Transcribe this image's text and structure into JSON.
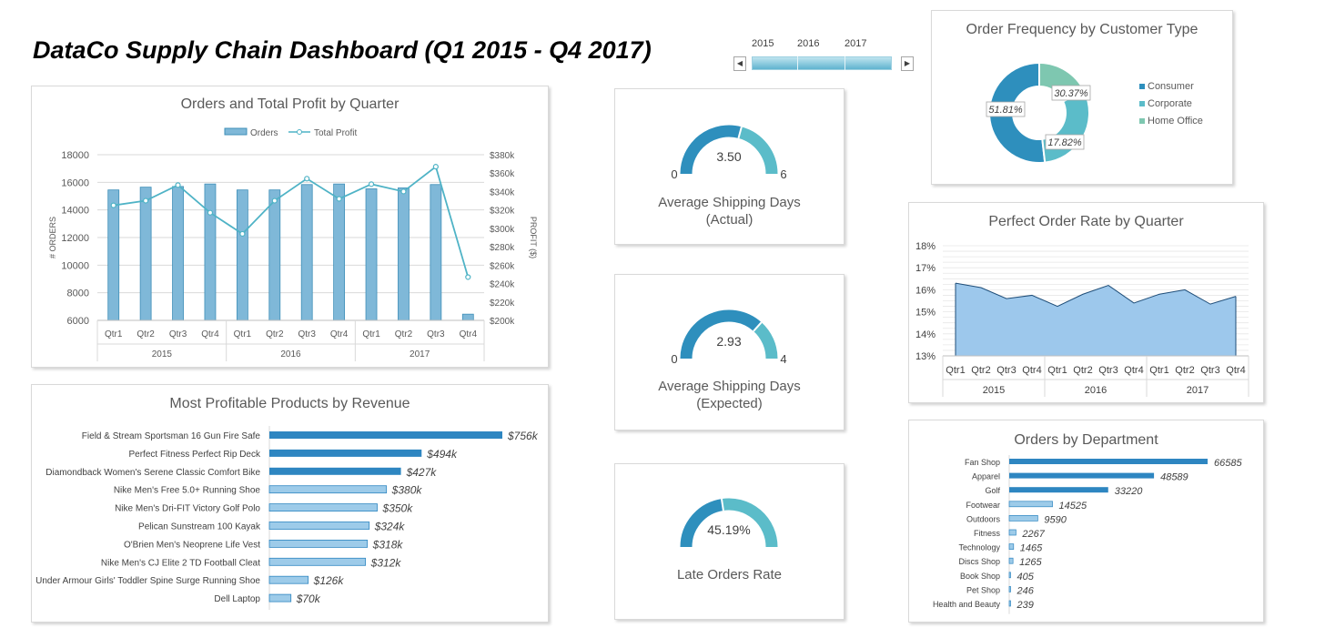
{
  "title": "DataCo Supply Chain Dashboard (Q1 2015 - Q4 2017)",
  "slicer": {
    "years": [
      "2015",
      "2016",
      "2017"
    ],
    "left_arrow": "◀",
    "right_arrow": "▶"
  },
  "colors": {
    "dark_blue": "#2e86c1",
    "teal_bar": "#4aa3c8",
    "bar_fill": "#7fb8d8",
    "light_bar": "#9dcbe9",
    "line": "#4fb3c6",
    "area": "#9dc8ec",
    "gauge_dark": "#2e8fbd",
    "gauge_light": "#5bbcc9"
  },
  "chart_data": [
    {
      "type": "bar",
      "title": "Orders and Total Profit by Quarter",
      "legend": [
        "Orders",
        "Total Profit"
      ],
      "legend_position": "top",
      "ylabel": "# ORDERS",
      "y2label": "PROFIT ($)",
      "categories": [
        "Qtr1",
        "Qtr2",
        "Qtr3",
        "Qtr4",
        "Qtr1",
        "Qtr2",
        "Qtr3",
        "Qtr4",
        "Qtr1",
        "Qtr2",
        "Qtr3",
        "Qtr4"
      ],
      "groups": [
        "2015",
        "2016",
        "2017"
      ],
      "ylim": [
        6000,
        18000
      ],
      "yticks": [
        6000,
        8000,
        10000,
        12000,
        14000,
        16000,
        18000
      ],
      "y2lim": [
        200,
        380
      ],
      "y2ticks": [
        "$200k",
        "$220k",
        "$240k",
        "$260k",
        "$280k",
        "$300k",
        "$320k",
        "$340k",
        "$360k",
        "$380k"
      ],
      "series": [
        {
          "name": "Orders",
          "type": "bar",
          "values": [
            15450,
            15650,
            15700,
            15880,
            15450,
            15450,
            15840,
            15880,
            15530,
            15600,
            15840,
            6450
          ]
        },
        {
          "name": "Total Profit",
          "type": "line",
          "values": [
            325,
            330,
            347,
            317,
            294,
            330,
            354,
            332,
            348,
            340,
            367,
            247
          ]
        }
      ],
      "grid": true
    },
    {
      "type": "bar",
      "orientation": "horizontal",
      "title": "Most Profitable Products by Revenue",
      "categories": [
        "Field & Stream Sportsman 16 Gun Fire Safe",
        "Perfect Fitness Perfect Rip Deck",
        "Diamondback Women's Serene Classic Comfort Bike",
        "Nike Men's Free 5.0+ Running Shoe",
        "Nike Men's Dri-FIT Victory Golf Polo",
        "Pelican Sunstream 100 Kayak",
        "O'Brien Men's Neoprene Life Vest",
        "Nike Men's CJ Elite 2 TD Football Cleat",
        "Under Armour Girls' Toddler Spine Surge Running Shoe",
        "Dell Laptop"
      ],
      "values": [
        756,
        494,
        427,
        380,
        350,
        324,
        318,
        312,
        126,
        70
      ],
      "labels": [
        "$756k",
        "$494k",
        "$427k",
        "$380k",
        "$350k",
        "$324k",
        "$318k",
        "$312k",
        "$126k",
        "$70k"
      ]
    },
    {
      "type": "gauge",
      "value_label": "3.50",
      "value": 3.5,
      "min": "0",
      "max": "6",
      "label_line1": "Average Shipping Days",
      "label_line2": "(Actual)"
    },
    {
      "type": "gauge",
      "value_label": "2.93",
      "value": 2.93,
      "min": "0",
      "max": "4",
      "label_line1": "Average Shipping Days",
      "label_line2": "(Expected)"
    },
    {
      "type": "gauge",
      "value_label": "45.19%",
      "value": 0.4519,
      "label_line1": "Late Orders Rate"
    },
    {
      "type": "pie",
      "donut": true,
      "title": "Order Frequency by Customer Type",
      "categories": [
        "Consumer",
        "Corporate",
        "Home Office"
      ],
      "values": [
        51.81,
        30.37,
        17.82
      ],
      "labels": [
        "51.81%",
        "30.37%",
        "17.82%"
      ],
      "colors": [
        "#2e8fbd",
        "#5bbcc9",
        "#7ec7b0"
      ],
      "legend_position": "right"
    },
    {
      "type": "area",
      "title": "Perfect Order Rate by Quarter",
      "categories": [
        "Qtr1",
        "Qtr2",
        "Qtr3",
        "Qtr4",
        "Qtr1",
        "Qtr2",
        "Qtr3",
        "Qtr4",
        "Qtr1",
        "Qtr2",
        "Qtr3",
        "Qtr4"
      ],
      "groups": [
        "2015",
        "2016",
        "2017"
      ],
      "values": [
        16.3,
        16.1,
        15.6,
        15.75,
        15.25,
        15.8,
        16.2,
        15.4,
        15.8,
        16.0,
        15.35,
        15.7
      ],
      "ylim": [
        13,
        18
      ],
      "yticks": [
        "13%",
        "14%",
        "15%",
        "16%",
        "17%",
        "18%"
      ],
      "grid": true
    },
    {
      "type": "bar",
      "orientation": "horizontal",
      "title": "Orders by Department",
      "categories": [
        "Fan Shop",
        "Apparel",
        "Golf",
        "Footwear",
        "Outdoors",
        "Fitness",
        "Technology",
        "Discs Shop",
        "Book Shop",
        "Pet Shop",
        "Health and Beauty"
      ],
      "values": [
        66585,
        48589,
        33220,
        14525,
        9590,
        2267,
        1465,
        1265,
        405,
        246,
        239
      ],
      "labels": [
        "66585",
        "48589",
        "33220",
        "14525",
        "9590",
        "2267",
        "1465",
        "1265",
        "405",
        "246",
        "239"
      ]
    }
  ]
}
